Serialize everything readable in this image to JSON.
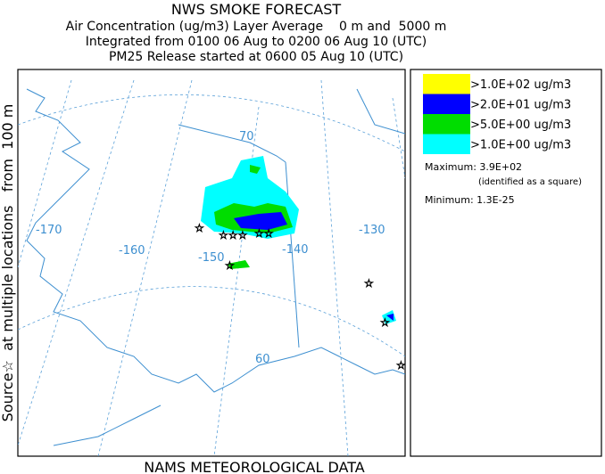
{
  "header": {
    "title": "NWS SMOKE FORECAST",
    "lines": [
      "Air Concentration (ug/m3) Layer Average    0 m and  5000 m",
      "Integrated from 0100 06 Aug to 0200 06 Aug 10 (UTC)",
      "PM25 Release started at 0600 05 Aug 10 (UTC)"
    ]
  },
  "side_label": "Source☆  at multiple locations   from  100 m",
  "map": {
    "labels": [
      "-170",
      "-160",
      "-150",
      "-140",
      "-130",
      "70",
      "60"
    ]
  },
  "legend": {
    "entries": [
      {
        "label": ">1.0E+02 ug/m3",
        "color": "#ffff00"
      },
      {
        "label": ">2.0E+01 ug/m3",
        "color": "#0000ff"
      },
      {
        "label": ">5.0E+00 ug/m3",
        "color": "#00dd00"
      },
      {
        "label": ">1.0E+00 ug/m3",
        "color": "#00ffff"
      }
    ]
  },
  "maximum": "Maximum: 3.9E+02",
  "maximum_note": "(identified as a square)",
  "minimum": "Minimum: 1.3E-25",
  "footer": "NAMS METEOROLOGICAL DATA"
}
